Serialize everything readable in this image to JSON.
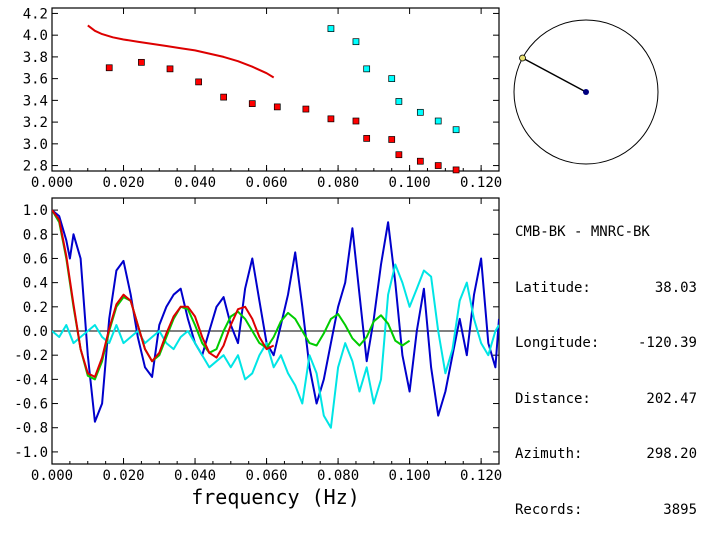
{
  "station_info": {
    "title": "CMB-BK - MNRC-BK",
    "rows": [
      {
        "label": "Latitude:",
        "value": "38.03"
      },
      {
        "label": "Longitude:",
        "value": "-120.39"
      },
      {
        "label": "Distance:",
        "value": "202.47"
      },
      {
        "label": "Azimuth:",
        "value": "298.20"
      },
      {
        "label": "Records:",
        "value": "3895"
      }
    ]
  },
  "azimuth_dial": {
    "azimuth_deg": 298.2,
    "circle_color": "#000000",
    "needle_tip_color": "#e8e070",
    "center_color": "#000080"
  },
  "chart_data": [
    {
      "type": "scatter",
      "xlim": [
        0.0,
        0.125
      ],
      "ylim": [
        2.75,
        4.25
      ],
      "xticks": [
        "0.000",
        "0.020",
        "0.040",
        "0.060",
        "0.080",
        "0.100",
        "0.120"
      ],
      "yticks": [
        "2.8",
        "3.0",
        "3.2",
        "3.4",
        "3.6",
        "3.8",
        "4.0",
        "4.2"
      ],
      "series": [
        {
          "color": "#ff0000",
          "style": "square",
          "x": [
            0.016,
            0.025,
            0.033,
            0.041,
            0.048,
            0.056,
            0.063,
            0.071,
            0.078,
            0.085,
            0.088,
            0.095,
            0.097,
            0.103,
            0.108,
            0.113
          ],
          "y": [
            3.7,
            3.75,
            3.69,
            3.57,
            3.43,
            3.37,
            3.34,
            3.32,
            3.23,
            3.21,
            3.05,
            3.04,
            2.9,
            2.84,
            2.8,
            2.76
          ]
        },
        {
          "color": "#00ffff",
          "style": "square",
          "x": [
            0.078,
            0.085,
            0.088,
            0.095,
            0.097,
            0.103,
            0.108,
            0.113
          ],
          "y": [
            4.06,
            3.94,
            3.69,
            3.6,
            3.39,
            3.29,
            3.21,
            3.13
          ]
        },
        {
          "color": "#dd0000",
          "style": "line",
          "x": [
            0.01,
            0.012,
            0.014,
            0.017,
            0.02,
            0.024,
            0.028,
            0.032,
            0.036,
            0.04,
            0.044,
            0.048,
            0.052,
            0.056,
            0.06,
            0.062
          ],
          "y": [
            4.09,
            4.04,
            4.01,
            3.98,
            3.96,
            3.94,
            3.92,
            3.9,
            3.88,
            3.86,
            3.83,
            3.8,
            3.76,
            3.71,
            3.65,
            3.61
          ]
        }
      ]
    },
    {
      "type": "line",
      "xlim": [
        0.0,
        0.125
      ],
      "ylim": [
        -1.1,
        1.1
      ],
      "xticks": [
        "0.000",
        "0.020",
        "0.040",
        "0.060",
        "0.080",
        "0.100",
        "0.120"
      ],
      "yticks": [
        "1.0",
        "0.8",
        "0.6",
        "0.4",
        "0.2",
        "0.0",
        "-0.2",
        "-0.4",
        "-0.6",
        "-0.8",
        "-1.0"
      ],
      "xlabel": "frequency (Hz)",
      "zero_line": true,
      "series": [
        {
          "color": "#0000cc",
          "x": [
            0.0,
            0.002,
            0.004,
            0.005,
            0.006,
            0.008,
            0.01,
            0.012,
            0.014,
            0.016,
            0.018,
            0.02,
            0.022,
            0.024,
            0.026,
            0.028,
            0.03,
            0.032,
            0.034,
            0.036,
            0.038,
            0.04,
            0.042,
            0.044,
            0.046,
            0.048,
            0.05,
            0.052,
            0.054,
            0.056,
            0.058,
            0.06,
            0.062,
            0.064,
            0.066,
            0.068,
            0.07,
            0.072,
            0.074,
            0.076,
            0.078,
            0.08,
            0.082,
            0.084,
            0.086,
            0.088,
            0.09,
            0.092,
            0.094,
            0.096,
            0.098,
            0.1,
            0.102,
            0.104,
            0.106,
            0.108,
            0.11,
            0.112,
            0.114,
            0.116,
            0.118,
            0.12,
            0.122,
            0.124,
            0.125
          ],
          "y": [
            1.0,
            0.95,
            0.75,
            0.6,
            0.8,
            0.6,
            -0.2,
            -0.75,
            -0.6,
            0.1,
            0.5,
            0.58,
            0.3,
            -0.05,
            -0.3,
            -0.38,
            0.05,
            0.2,
            0.3,
            0.35,
            0.1,
            -0.1,
            -0.2,
            0.0,
            0.2,
            0.28,
            0.05,
            -0.1,
            0.35,
            0.6,
            0.25,
            -0.1,
            -0.2,
            0.05,
            0.3,
            0.65,
            0.2,
            -0.3,
            -0.6,
            -0.4,
            -0.1,
            0.2,
            0.4,
            0.85,
            0.3,
            -0.25,
            0.1,
            0.55,
            0.9,
            0.4,
            -0.2,
            -0.5,
            0.0,
            0.35,
            -0.3,
            -0.7,
            -0.5,
            -0.2,
            0.1,
            -0.2,
            0.3,
            0.6,
            -0.1,
            -0.3,
            0.1
          ]
        },
        {
          "color": "#00e5e5",
          "x": [
            0.0,
            0.002,
            0.004,
            0.006,
            0.008,
            0.01,
            0.012,
            0.014,
            0.016,
            0.018,
            0.02,
            0.022,
            0.024,
            0.026,
            0.028,
            0.03,
            0.032,
            0.034,
            0.036,
            0.038,
            0.04,
            0.042,
            0.044,
            0.046,
            0.048,
            0.05,
            0.052,
            0.054,
            0.056,
            0.058,
            0.06,
            0.062,
            0.064,
            0.066,
            0.068,
            0.07,
            0.072,
            0.074,
            0.076,
            0.078,
            0.08,
            0.082,
            0.084,
            0.086,
            0.088,
            0.09,
            0.092,
            0.094,
            0.096,
            0.098,
            0.1,
            0.102,
            0.104,
            0.106,
            0.108,
            0.11,
            0.112,
            0.114,
            0.116,
            0.118,
            0.12,
            0.122,
            0.124,
            0.125
          ],
          "y": [
            0.0,
            -0.05,
            0.05,
            -0.1,
            -0.05,
            0.0,
            0.05,
            -0.05,
            -0.1,
            0.05,
            -0.1,
            -0.05,
            0.0,
            -0.1,
            -0.05,
            0.0,
            -0.1,
            -0.15,
            -0.05,
            0.0,
            -0.1,
            -0.2,
            -0.3,
            -0.25,
            -0.2,
            -0.3,
            -0.2,
            -0.4,
            -0.35,
            -0.2,
            -0.1,
            -0.3,
            -0.2,
            -0.35,
            -0.45,
            -0.6,
            -0.2,
            -0.35,
            -0.7,
            -0.8,
            -0.3,
            -0.1,
            -0.25,
            -0.5,
            -0.3,
            -0.6,
            -0.4,
            0.3,
            0.55,
            0.4,
            0.2,
            0.35,
            0.5,
            0.45,
            0.0,
            -0.35,
            -0.15,
            0.25,
            0.4,
            0.1,
            -0.1,
            -0.2,
            0.0,
            0.05
          ]
        },
        {
          "color": "#00cc00",
          "x": [
            0.0,
            0.002,
            0.004,
            0.006,
            0.008,
            0.01,
            0.012,
            0.014,
            0.016,
            0.018,
            0.02,
            0.022,
            0.024,
            0.026,
            0.028,
            0.03,
            0.032,
            0.034,
            0.036,
            0.038,
            0.04,
            0.042,
            0.044,
            0.046,
            0.048,
            0.05,
            0.052,
            0.054,
            0.056,
            0.058,
            0.06,
            0.062,
            0.064,
            0.066,
            0.068,
            0.07,
            0.072,
            0.074,
            0.076,
            0.078,
            0.08,
            0.082,
            0.084,
            0.086,
            0.088,
            0.09,
            0.092,
            0.094,
            0.096,
            0.098,
            0.1
          ],
          "y": [
            1.0,
            0.9,
            0.6,
            0.2,
            -0.15,
            -0.37,
            -0.4,
            -0.25,
            0.0,
            0.2,
            0.28,
            0.25,
            0.05,
            -0.15,
            -0.25,
            -0.2,
            -0.05,
            0.1,
            0.2,
            0.18,
            0.05,
            -0.1,
            -0.18,
            -0.15,
            0.0,
            0.12,
            0.16,
            0.1,
            0.0,
            -0.1,
            -0.14,
            -0.05,
            0.08,
            0.15,
            0.1,
            0.0,
            -0.1,
            -0.12,
            -0.02,
            0.1,
            0.14,
            0.05,
            -0.06,
            -0.12,
            -0.05,
            0.08,
            0.13,
            0.06,
            -0.08,
            -0.12,
            -0.08
          ]
        },
        {
          "color": "#dd0000",
          "x": [
            0.0,
            0.002,
            0.004,
            0.006,
            0.008,
            0.01,
            0.012,
            0.014,
            0.016,
            0.018,
            0.02,
            0.022,
            0.024,
            0.026,
            0.028,
            0.03,
            0.032,
            0.034,
            0.036,
            0.038,
            0.04,
            0.042,
            0.044,
            0.046,
            0.048,
            0.05,
            0.052,
            0.054,
            0.056,
            0.058,
            0.06,
            0.062
          ],
          "y": [
            1.0,
            0.92,
            0.62,
            0.22,
            -0.15,
            -0.35,
            -0.38,
            -0.22,
            0.02,
            0.22,
            0.3,
            0.25,
            0.05,
            -0.15,
            -0.25,
            -0.18,
            -0.02,
            0.12,
            0.2,
            0.2,
            0.12,
            -0.05,
            -0.18,
            -0.22,
            -0.12,
            0.05,
            0.18,
            0.2,
            0.1,
            -0.05,
            -0.15,
            -0.12
          ]
        }
      ]
    }
  ]
}
